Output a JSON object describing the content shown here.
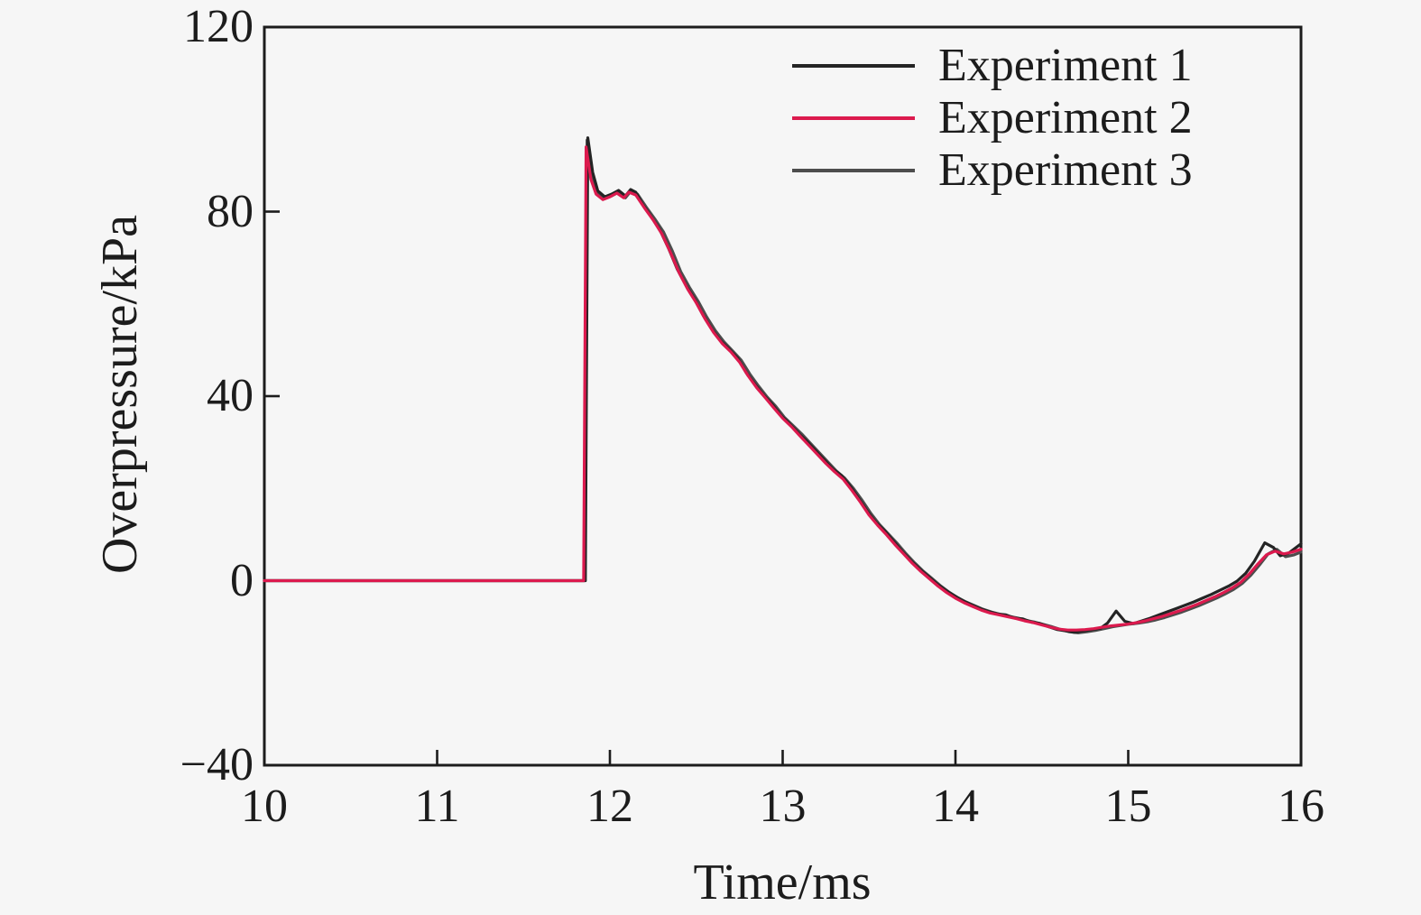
{
  "figure": {
    "background": "#f6f6f6",
    "frame_color": "#1c1c1c",
    "text_color": "#1c1c1c"
  },
  "chart_data": {
    "type": "line",
    "title": "",
    "xlabel": "Time/ms",
    "ylabel": "Overpressure/kPa",
    "xlim": [
      10,
      16
    ],
    "ylim": [
      -40,
      120
    ],
    "xticks": [
      10,
      11,
      12,
      13,
      14,
      15,
      16
    ],
    "yticks": [
      -40,
      0,
      40,
      80,
      120
    ],
    "xticklabels": [
      "10",
      "11",
      "12",
      "13",
      "14",
      "15",
      "16"
    ],
    "yticklabels": [
      "−40",
      "0",
      "40",
      "80",
      "120"
    ],
    "grid": false,
    "legend_position": "top-right-inside",
    "series": [
      {
        "name": "Experiment 1",
        "color": "#242424",
        "points": [
          [
            10,
            0
          ],
          [
            11.858,
            0
          ],
          [
            11.872,
            96
          ],
          [
            11.9,
            88.5
          ],
          [
            11.93,
            84.5
          ],
          [
            11.97,
            83.2
          ],
          [
            12.01,
            83.8
          ],
          [
            12.05,
            84.6
          ],
          [
            12.09,
            83.4
          ],
          [
            12.12,
            84.8
          ],
          [
            12.15,
            84.2
          ],
          [
            12.19,
            81.5
          ],
          [
            12.24,
            78.8
          ],
          [
            12.29,
            76
          ],
          [
            12.34,
            72
          ],
          [
            12.39,
            67.5
          ],
          [
            12.44,
            64
          ],
          [
            12.49,
            61
          ],
          [
            12.54,
            57.5
          ],
          [
            12.59,
            54.5
          ],
          [
            12.64,
            52
          ],
          [
            12.69,
            50.2
          ],
          [
            12.74,
            48.2
          ],
          [
            12.79,
            45
          ],
          [
            12.84,
            42.5
          ],
          [
            12.89,
            40.2
          ],
          [
            12.94,
            38.2
          ],
          [
            12.99,
            35.8
          ],
          [
            13.04,
            34
          ],
          [
            13.09,
            32
          ],
          [
            13.14,
            30.2
          ],
          [
            13.19,
            28.2
          ],
          [
            13.24,
            26.2
          ],
          [
            13.29,
            24.2
          ],
          [
            13.34,
            22.8
          ],
          [
            13.39,
            20.5
          ],
          [
            13.44,
            17.8
          ],
          [
            13.49,
            15
          ],
          [
            13.54,
            12.6
          ],
          [
            13.59,
            10.8
          ],
          [
            13.64,
            8.6
          ],
          [
            13.69,
            6.4
          ],
          [
            13.74,
            4.4
          ],
          [
            13.79,
            2.6
          ],
          [
            13.84,
            1.0
          ],
          [
            13.89,
            -0.6
          ],
          [
            13.94,
            -2.0
          ],
          [
            13.99,
            -3.2
          ],
          [
            14.04,
            -4.3
          ],
          [
            14.09,
            -5.2
          ],
          [
            14.14,
            -6.0
          ],
          [
            14.19,
            -6.7
          ],
          [
            14.24,
            -7.2
          ],
          [
            14.29,
            -7.4
          ],
          [
            14.34,
            -8.1
          ],
          [
            14.39,
            -8.3
          ],
          [
            14.44,
            -9.0
          ],
          [
            14.49,
            -9.3
          ],
          [
            14.54,
            -10.0
          ],
          [
            14.59,
            -10.6
          ],
          [
            14.64,
            -10.9
          ],
          [
            14.69,
            -11.2
          ],
          [
            14.74,
            -10.9
          ],
          [
            14.79,
            -10.6
          ],
          [
            14.84,
            -10.3
          ],
          [
            14.88,
            -9.2
          ],
          [
            14.93,
            -6.6
          ],
          [
            14.98,
            -8.8
          ],
          [
            15.03,
            -9.3
          ],
          [
            15.08,
            -8.7
          ],
          [
            15.13,
            -8.1
          ],
          [
            15.18,
            -7.4
          ],
          [
            15.23,
            -6.7
          ],
          [
            15.28,
            -6.0
          ],
          [
            15.33,
            -5.3
          ],
          [
            15.38,
            -4.6
          ],
          [
            15.43,
            -3.8
          ],
          [
            15.48,
            -3.0
          ],
          [
            15.53,
            -2.1
          ],
          [
            15.58,
            -1.2
          ],
          [
            15.63,
            -0.1
          ],
          [
            15.68,
            1.6
          ],
          [
            15.73,
            4.2
          ],
          [
            15.79,
            8.2
          ],
          [
            15.84,
            7.2
          ],
          [
            15.88,
            5.4
          ],
          [
            15.93,
            6.0
          ],
          [
            16.0,
            8.0
          ]
        ]
      },
      {
        "name": "Experiment 2",
        "color": "#dc1a4e",
        "points": [
          [
            10,
            0
          ],
          [
            11.848,
            0
          ],
          [
            11.862,
            94
          ],
          [
            11.89,
            87
          ],
          [
            11.92,
            83.8
          ],
          [
            11.96,
            82.6
          ],
          [
            12.0,
            83.2
          ],
          [
            12.04,
            84.0
          ],
          [
            12.08,
            83.0
          ],
          [
            12.11,
            84.2
          ],
          [
            12.15,
            83.6
          ],
          [
            12.2,
            80.8
          ],
          [
            12.25,
            78.2
          ],
          [
            12.3,
            75.2
          ],
          [
            12.35,
            71.2
          ],
          [
            12.4,
            66.8
          ],
          [
            12.45,
            63.2
          ],
          [
            12.5,
            60.2
          ],
          [
            12.55,
            56.8
          ],
          [
            12.6,
            53.8
          ],
          [
            12.65,
            51.4
          ],
          [
            12.7,
            49.6
          ],
          [
            12.75,
            47.4
          ],
          [
            12.8,
            44.4
          ],
          [
            12.85,
            41.8
          ],
          [
            12.9,
            39.6
          ],
          [
            12.95,
            37.4
          ],
          [
            13.0,
            35.2
          ],
          [
            13.05,
            33.4
          ],
          [
            13.1,
            31.4
          ],
          [
            13.15,
            29.4
          ],
          [
            13.2,
            27.4
          ],
          [
            13.25,
            25.4
          ],
          [
            13.3,
            23.6
          ],
          [
            13.35,
            22.0
          ],
          [
            13.4,
            19.6
          ],
          [
            13.45,
            17.0
          ],
          [
            13.5,
            14.2
          ],
          [
            13.55,
            12.0
          ],
          [
            13.6,
            10.0
          ],
          [
            13.65,
            7.8
          ],
          [
            13.7,
            5.8
          ],
          [
            13.75,
            3.8
          ],
          [
            13.8,
            2.0
          ],
          [
            13.85,
            0.4
          ],
          [
            13.9,
            -1.2
          ],
          [
            13.95,
            -2.6
          ],
          [
            14.0,
            -3.8
          ],
          [
            14.05,
            -4.8
          ],
          [
            14.1,
            -5.6
          ],
          [
            14.15,
            -6.4
          ],
          [
            14.2,
            -7.0
          ],
          [
            14.25,
            -7.4
          ],
          [
            14.3,
            -7.8
          ],
          [
            14.35,
            -8.2
          ],
          [
            14.4,
            -8.7
          ],
          [
            14.45,
            -9.1
          ],
          [
            14.5,
            -9.6
          ],
          [
            14.55,
            -10.1
          ],
          [
            14.6,
            -10.5
          ],
          [
            14.65,
            -10.7
          ],
          [
            14.7,
            -10.7
          ],
          [
            14.75,
            -10.6
          ],
          [
            14.8,
            -10.4
          ],
          [
            14.85,
            -10.1
          ],
          [
            14.9,
            -9.8
          ],
          [
            14.95,
            -9.6
          ],
          [
            15.0,
            -9.4
          ],
          [
            15.05,
            -9.1
          ],
          [
            15.1,
            -8.7
          ],
          [
            15.15,
            -8.2
          ],
          [
            15.2,
            -7.7
          ],
          [
            15.25,
            -7.1
          ],
          [
            15.3,
            -6.5
          ],
          [
            15.35,
            -5.8
          ],
          [
            15.4,
            -5.1
          ],
          [
            15.45,
            -4.3
          ],
          [
            15.5,
            -3.5
          ],
          [
            15.55,
            -2.6
          ],
          [
            15.6,
            -1.6
          ],
          [
            15.65,
            -0.4
          ],
          [
            15.7,
            1.4
          ],
          [
            15.75,
            3.6
          ],
          [
            15.8,
            5.6
          ],
          [
            15.85,
            6.4
          ],
          [
            15.9,
            5.8
          ],
          [
            15.95,
            6.2
          ],
          [
            16.0,
            6.8
          ]
        ]
      },
      {
        "name": "Experiment 3",
        "color": "#4d4d4d",
        "points": [
          [
            10,
            0
          ],
          [
            11.854,
            0
          ],
          [
            11.868,
            95.5
          ],
          [
            11.9,
            87.6
          ],
          [
            11.93,
            84.0
          ],
          [
            11.97,
            82.8
          ],
          [
            12.01,
            83.4
          ],
          [
            12.05,
            84.2
          ],
          [
            12.09,
            83.0
          ],
          [
            12.12,
            84.4
          ],
          [
            12.16,
            83.8
          ],
          [
            12.21,
            81.0
          ],
          [
            12.26,
            78.4
          ],
          [
            12.31,
            75.6
          ],
          [
            12.36,
            71.6
          ],
          [
            12.41,
            67.0
          ],
          [
            12.46,
            63.6
          ],
          [
            12.51,
            60.6
          ],
          [
            12.56,
            57.2
          ],
          [
            12.61,
            54.2
          ],
          [
            12.66,
            51.8
          ],
          [
            12.71,
            49.8
          ],
          [
            12.76,
            47.8
          ],
          [
            12.81,
            44.8
          ],
          [
            12.86,
            42.2
          ],
          [
            12.91,
            39.8
          ],
          [
            12.96,
            37.8
          ],
          [
            13.01,
            35.4
          ],
          [
            13.06,
            33.6
          ],
          [
            13.11,
            31.8
          ],
          [
            13.16,
            29.8
          ],
          [
            13.21,
            27.8
          ],
          [
            13.26,
            25.8
          ],
          [
            13.31,
            23.8
          ],
          [
            13.36,
            22.2
          ],
          [
            13.41,
            20.0
          ],
          [
            13.46,
            17.4
          ],
          [
            13.51,
            14.6
          ],
          [
            13.56,
            12.2
          ],
          [
            13.61,
            10.2
          ],
          [
            13.66,
            8.2
          ],
          [
            13.71,
            6.0
          ],
          [
            13.76,
            4.0
          ],
          [
            13.81,
            2.2
          ],
          [
            13.86,
            0.6
          ],
          [
            13.91,
            -1.0
          ],
          [
            13.96,
            -2.4
          ],
          [
            14.01,
            -3.6
          ],
          [
            14.06,
            -4.6
          ],
          [
            14.11,
            -5.4
          ],
          [
            14.16,
            -6.2
          ],
          [
            14.21,
            -6.8
          ],
          [
            14.26,
            -7.3
          ],
          [
            14.31,
            -7.7
          ],
          [
            14.36,
            -8.1
          ],
          [
            14.41,
            -8.6
          ],
          [
            14.46,
            -9.0
          ],
          [
            14.51,
            -9.5
          ],
          [
            14.56,
            -10.0
          ],
          [
            14.61,
            -10.6
          ],
          [
            14.66,
            -11.1
          ],
          [
            14.71,
            -11.3
          ],
          [
            14.76,
            -11.1
          ],
          [
            14.81,
            -10.8
          ],
          [
            14.86,
            -10.4
          ],
          [
            14.91,
            -10.0
          ],
          [
            14.96,
            -9.7
          ],
          [
            15.01,
            -9.4
          ],
          [
            15.06,
            -9.2
          ],
          [
            15.11,
            -8.9
          ],
          [
            15.16,
            -8.5
          ],
          [
            15.21,
            -8.0
          ],
          [
            15.26,
            -7.4
          ],
          [
            15.31,
            -6.8
          ],
          [
            15.36,
            -6.1
          ],
          [
            15.41,
            -5.4
          ],
          [
            15.46,
            -4.6
          ],
          [
            15.51,
            -3.8
          ],
          [
            15.56,
            -2.9
          ],
          [
            15.61,
            -1.9
          ],
          [
            15.66,
            -0.6
          ],
          [
            15.71,
            1.2
          ],
          [
            15.76,
            3.4
          ],
          [
            15.81,
            5.8
          ],
          [
            15.86,
            6.8
          ],
          [
            15.91,
            5.2
          ],
          [
            15.96,
            5.6
          ],
          [
            16.0,
            6.2
          ]
        ]
      }
    ]
  }
}
